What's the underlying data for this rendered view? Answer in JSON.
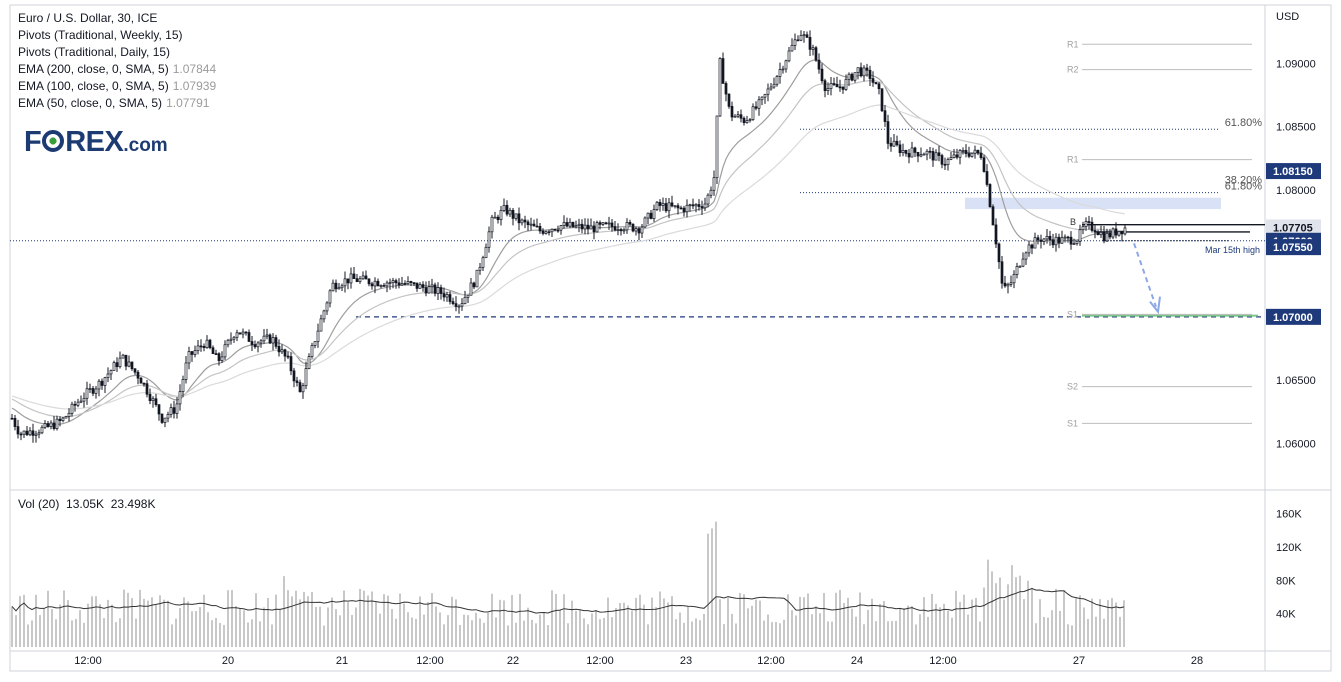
{
  "legend": {
    "symbol": "Euro / U.S. Dollar, 30, ICE",
    "pivots_weekly": "Pivots (Traditional, Weekly, 15)",
    "pivots_daily": "Pivots (Traditional, Daily, 15)",
    "ema200_label": "EMA (200, close, 0, SMA, 5)",
    "ema200_value": "1.07844",
    "ema100_label": "EMA (100, close, 0, SMA, 5)",
    "ema100_value": "1.07939",
    "ema50_label": "EMA (50, close, 0, SMA, 5)",
    "ema50_value": "1.07791"
  },
  "volume_legend": {
    "label": "Vol (20)",
    "value1": "13.05K",
    "value2": "23.498K"
  },
  "logo": {
    "part1": "F",
    "part2": "REX",
    "part3": ".com"
  },
  "colors": {
    "candle": "#131722",
    "ema": "#b8b8b8",
    "price_tag": "#1e3a7b",
    "support_green": "#7cc58a",
    "arrow": "#8ca8e8",
    "zone": "#c9d4f2",
    "pivot": "#bdbdbd"
  },
  "chart_data": {
    "type": "candlestick",
    "currency": "USD",
    "y_ticks": [
      1.09,
      1.085,
      1.08,
      1.065,
      1.06
    ],
    "y_tick_labels": [
      "1.09000",
      "1.08500",
      "1.08000",
      "1.06500",
      "1.06000"
    ],
    "ylim": [
      1.0565,
      1.0946
    ],
    "x_tick_labels": [
      "12:00",
      "20",
      "21",
      "12:00",
      "22",
      "12:00",
      "23",
      "12:00",
      "24",
      "12:00",
      "27",
      "28"
    ],
    "price_tags": [
      {
        "label": "1.08150",
        "value": 1.0815
      },
      {
        "label": "1.07705",
        "value": 1.07705,
        "style": "light"
      },
      {
        "label": "1.07600",
        "value": 1.076
      },
      {
        "label": "1.07550",
        "value": 1.0755
      },
      {
        "label": "1.07000",
        "value": 1.07
      }
    ],
    "pivot_labels": [
      {
        "label": "R1",
        "value": 1.0915
      },
      {
        "label": "R2",
        "value": 1.0895
      },
      {
        "label": "R1",
        "value": 1.0824
      },
      {
        "label": "S1",
        "value": 1.0702
      },
      {
        "label": "S2",
        "value": 1.0645
      },
      {
        "label": "S1",
        "value": 1.0616
      }
    ],
    "fib_labels": [
      {
        "label": "61.80%",
        "value": 1.0848
      },
      {
        "label": "38.20%",
        "value": 1.0803
      },
      {
        "label": "61.80%",
        "value": 1.0798
      }
    ],
    "annotations": {
      "mar15": "Mar 15th high",
      "b_label": "B"
    },
    "volume_ticks": [
      "160K",
      "120K",
      "80K",
      "40K"
    ],
    "volume_ylim": [
      0,
      180000
    ]
  }
}
